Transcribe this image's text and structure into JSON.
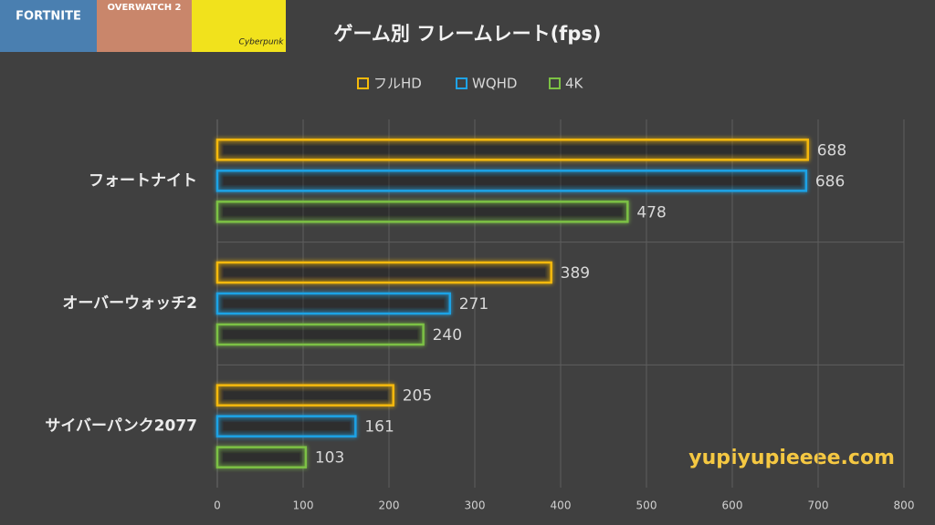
{
  "chart_data": {
    "type": "bar",
    "orientation": "horizontal",
    "title": "ゲーム別 フレームレート(fps)",
    "thumbnails": [
      "FORTNITE",
      "OVERWATCH 2",
      "Cyberpunk"
    ],
    "categories": [
      "フォートナイト",
      "オーバーウォッチ2",
      "サイバーパンク2077"
    ],
    "series": [
      {
        "name": "フルHD",
        "color": "#f5b90a",
        "values": [
          688,
          389,
          205
        ]
      },
      {
        "name": "WQHD",
        "color": "#1fa3e6",
        "values": [
          686,
          271,
          161
        ]
      },
      {
        "name": "4K",
        "color": "#7cc144",
        "values": [
          478,
          240,
          103
        ]
      }
    ],
    "xlim": [
      0,
      800
    ],
    "xticks": [
      0,
      100,
      200,
      300,
      400,
      500,
      600,
      700,
      800
    ],
    "grid": true,
    "legend": "top",
    "annotation": "yupiyupieeee.com"
  }
}
